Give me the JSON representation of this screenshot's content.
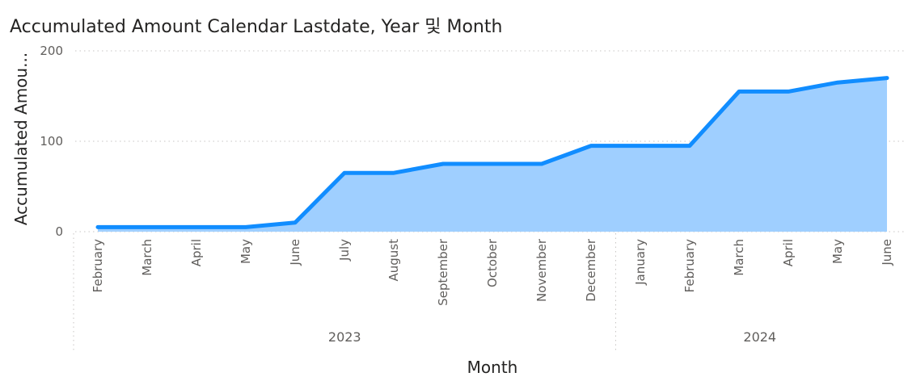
{
  "chart_data": {
    "type": "area",
    "title": "Accumulated Amount Calendar Lastdate, Year 및 Month",
    "xlabel": "Month",
    "ylabel": "Accumulated Amou...",
    "ylim": [
      0,
      200
    ],
    "yticks": [
      0,
      100,
      200
    ],
    "grid": true,
    "categories": [
      "February",
      "March",
      "April",
      "May",
      "June",
      "July",
      "August",
      "September",
      "October",
      "November",
      "December",
      "January",
      "February",
      "March",
      "April",
      "May",
      "June"
    ],
    "year_groups": [
      {
        "label": "2023",
        "count": 11
      },
      {
        "label": "2024",
        "count": 6
      }
    ],
    "series": [
      {
        "values": [
          5,
          5,
          5,
          5,
          10,
          65,
          65,
          75,
          75,
          75,
          95,
          95,
          95,
          155,
          155,
          165,
          170
        ]
      }
    ],
    "colors": {
      "line": "#118dff",
      "fill": "#9fcfff"
    }
  }
}
